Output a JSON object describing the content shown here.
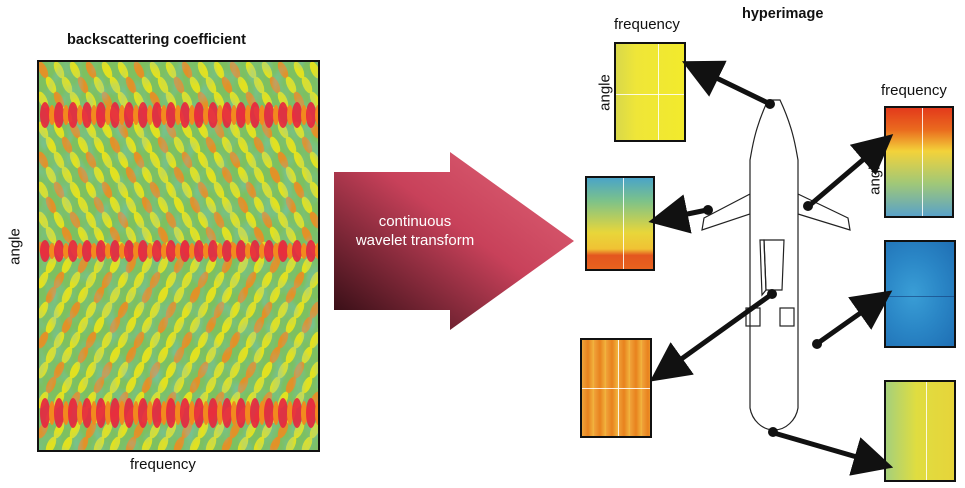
{
  "main": {
    "title": "backscattering coefficient",
    "x_label": "frequency",
    "y_label": "angle"
  },
  "transform": {
    "line1": "continuous",
    "line2": "wavelet transform"
  },
  "hyperimage": {
    "title": "hyperimage",
    "top_tile": {
      "x_label": "frequency",
      "y_label": "angle"
    },
    "right_tile": {
      "x_label": "frequency",
      "y_label": "angle"
    }
  },
  "colors": {
    "red": "#e8243f",
    "orange": "#f28a1e",
    "yellow": "#f2e616",
    "green": "#3aa86b",
    "blue": "#2c7fc0",
    "arrow_light": "#d9576b",
    "arrow_dark": "#3a0e14"
  }
}
